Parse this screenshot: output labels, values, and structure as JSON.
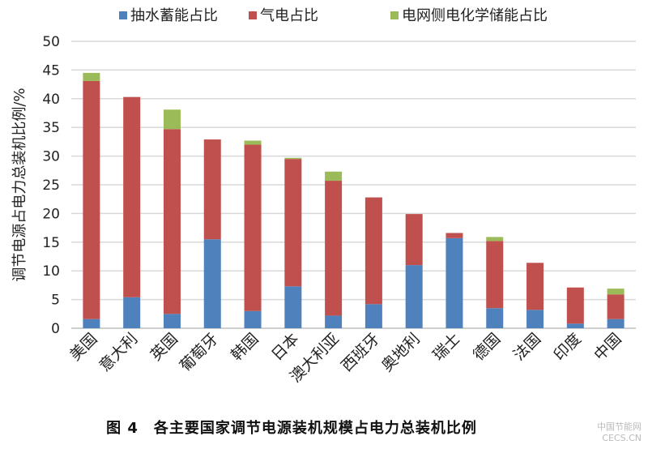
{
  "chart_data": {
    "type": "bar",
    "stacked": true,
    "ylabel": "调节电源占电力总装机比例/%",
    "ylim": [
      0,
      50
    ],
    "yticks": [
      0,
      5,
      10,
      15,
      20,
      25,
      30,
      35,
      40,
      45,
      50
    ],
    "grid": true,
    "legend_position": "top",
    "categories": [
      "美国",
      "意大利",
      "英国",
      "葡萄牙",
      "韩国",
      "日本",
      "澳大利亚",
      "西班牙",
      "奥地利",
      "瑞士",
      "德国",
      "法国",
      "印度",
      "中国"
    ],
    "series": [
      {
        "name": "抽水蓄能占比",
        "color": "#4f81bd",
        "values": [
          1.6,
          5.4,
          2.5,
          15.5,
          3.0,
          7.3,
          2.2,
          4.2,
          11.0,
          15.7,
          3.5,
          3.2,
          0.8,
          1.6
        ]
      },
      {
        "name": "气电占比",
        "color": "#c0504d",
        "values": [
          41.5,
          34.9,
          32.2,
          17.4,
          29.0,
          22.2,
          23.5,
          18.6,
          8.9,
          0.9,
          11.7,
          8.2,
          6.3,
          4.3
        ]
      },
      {
        "name": "电网侧电化学储能占比",
        "color": "#9bbb59",
        "values": [
          1.4,
          0,
          3.4,
          0,
          0.7,
          0.2,
          1.6,
          0,
          0,
          0,
          0.7,
          0,
          0,
          1.0
        ]
      }
    ]
  },
  "caption": "图 4　各主要国家调节电源装机规模占电力总装机比例",
  "watermark": [
    "中国节能网",
    "CECS.CN"
  ]
}
